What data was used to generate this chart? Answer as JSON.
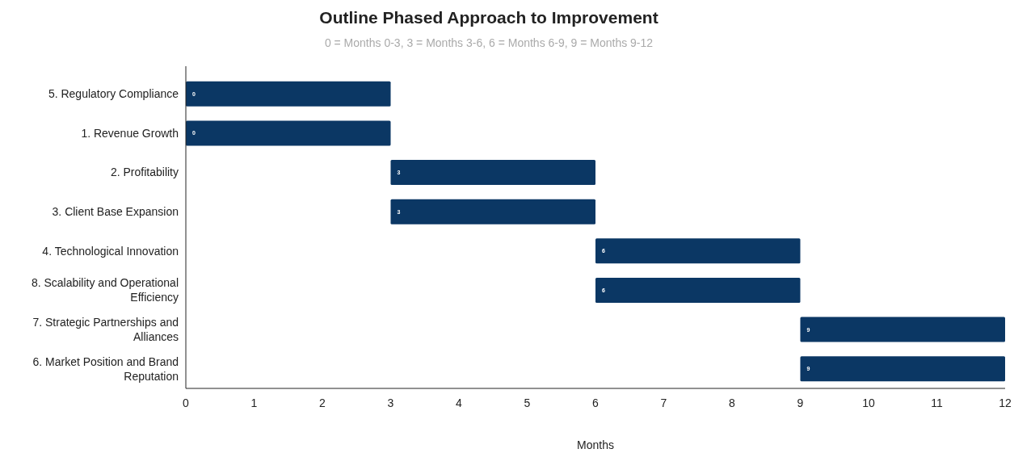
{
  "chart_data": {
    "type": "bar",
    "orientation": "horizontal",
    "title": "Outline Phased Approach to Improvement",
    "subtitle": "0 = Months 0-3, 3 = Months 3-6, 6 = Months 6-9, 9 = Months 9-12",
    "xlabel": "Months",
    "categories": [
      "5. Regulatory Compliance",
      "1. Revenue Growth",
      "2. Profitability",
      "3. Client Base Expansion",
      "4. Technological Innovation",
      "8. Scalability and Operational Efficiency",
      "7. Strategic Partnerships and Alliances",
      "6. Market Position and Brand Reputation"
    ],
    "values": [
      3,
      3,
      3,
      3,
      3,
      3,
      3,
      3
    ],
    "base": [
      0,
      0,
      3,
      3,
      6,
      6,
      9,
      9
    ],
    "annotations": [
      {
        "text": "0",
        "x": 0,
        "y": "5. Regulatory Compliance"
      },
      {
        "text": "0",
        "x": 0,
        "y": "1. Revenue Growth"
      },
      {
        "text": "3",
        "x": 3,
        "y": "2. Profitability"
      },
      {
        "text": "3",
        "x": 3,
        "y": "3. Client Base Expansion"
      },
      {
        "text": "6",
        "x": 6,
        "y": "4. Technological Innovation"
      },
      {
        "text": "6",
        "x": 6,
        "y": "8. Scalability and Operational Efficiency"
      },
      {
        "text": "9",
        "x": 9,
        "y": "7. Strategic Partnerships and Alliances"
      },
      {
        "text": "9",
        "x": 9,
        "y": "6. Market Position and Brand Reputation"
      }
    ],
    "color": "#0b3764",
    "xlim": [
      0,
      12
    ],
    "xticks": [
      0,
      1,
      2,
      3,
      4,
      5,
      6,
      7,
      8,
      9,
      10,
      11,
      12
    ],
    "grid": false
  }
}
